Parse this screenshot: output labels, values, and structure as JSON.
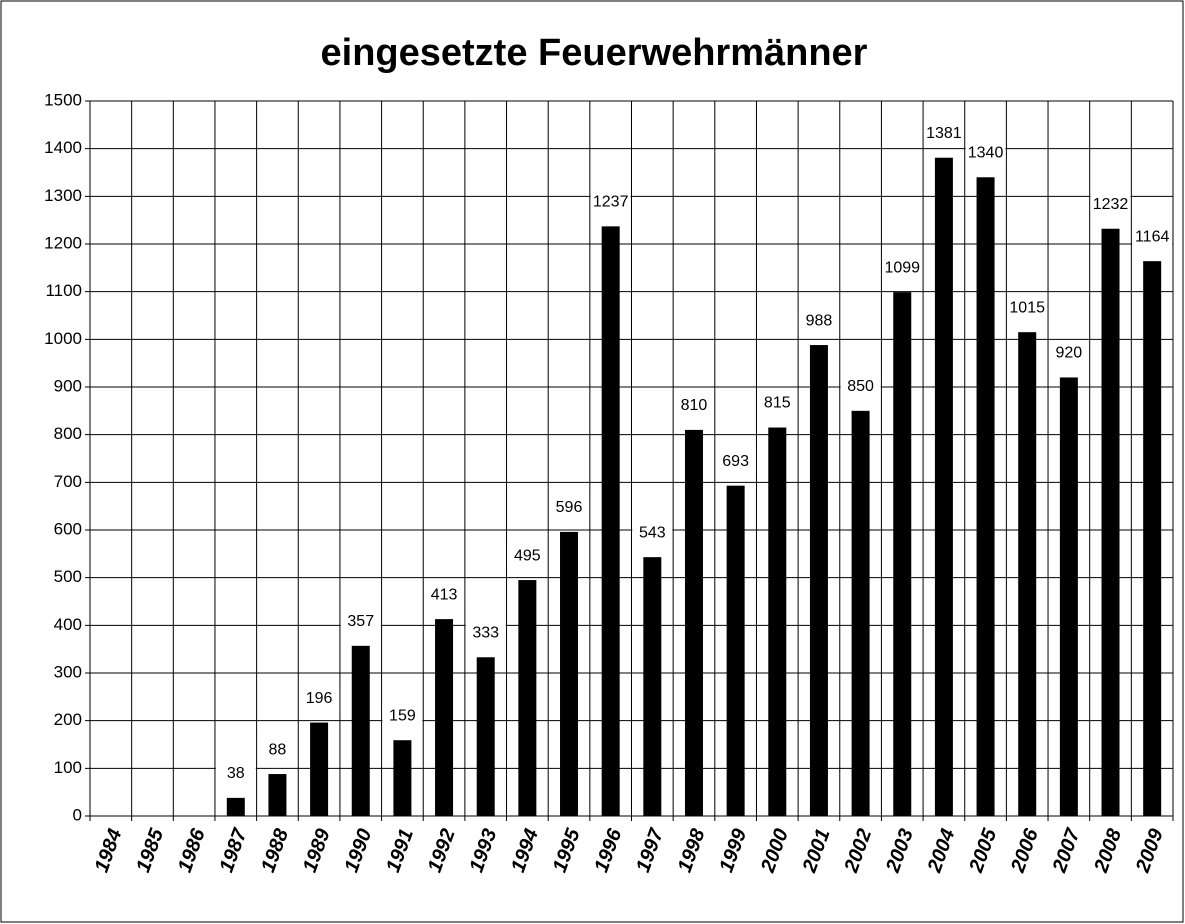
{
  "chart_data": {
    "type": "bar",
    "title": "eingesetzte Feuerwehrmänner",
    "categories": [
      "1984",
      "1985",
      "1986",
      "1987",
      "1988",
      "1989",
      "1990",
      "1991",
      "1992",
      "1993",
      "1994",
      "1995",
      "1996",
      "1997",
      "1998",
      "1999",
      "2000",
      "2001",
      "2002",
      "2003",
      "2004",
      "2005",
      "2006",
      "2007",
      "2008",
      "2009"
    ],
    "values": [
      null,
      null,
      null,
      38,
      88,
      196,
      357,
      159,
      413,
      333,
      495,
      596,
      1237,
      543,
      810,
      693,
      815,
      988,
      850,
      1099,
      1381,
      1340,
      1015,
      920,
      1232,
      1164
    ],
    "color": "#000000",
    "ylim": [
      0,
      1500
    ],
    "yticks": [
      0,
      100,
      200,
      300,
      400,
      500,
      600,
      700,
      800,
      900,
      1000,
      1100,
      1200,
      1300,
      1400,
      1500
    ],
    "grid": true
  }
}
